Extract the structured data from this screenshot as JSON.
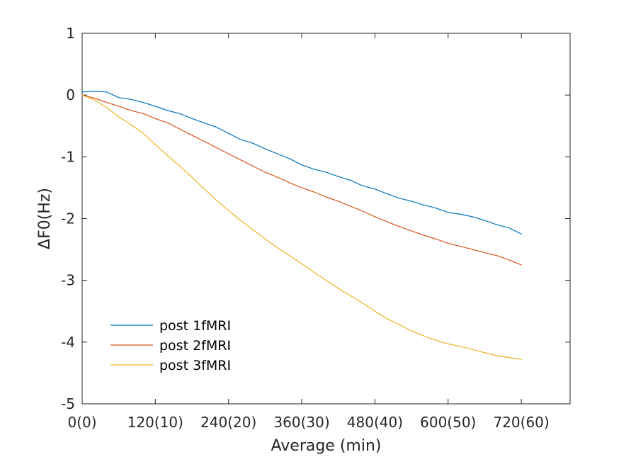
{
  "chart_data": {
    "type": "line",
    "title": "",
    "xlabel": "Average (min)",
    "ylabel": "ΔF0(Hz)",
    "xlim": [
      0,
      800
    ],
    "ylim": [
      -5,
      1
    ],
    "x_ticks": [
      {
        "value": 0,
        "label": "0(0)"
      },
      {
        "value": 120,
        "label": "120(10)"
      },
      {
        "value": 240,
        "label": "240(20)"
      },
      {
        "value": 360,
        "label": "360(30)"
      },
      {
        "value": 480,
        "label": "480(40)"
      },
      {
        "value": 600,
        "label": "600(50)"
      },
      {
        "value": 720,
        "label": "720(60)"
      }
    ],
    "y_ticks": [
      {
        "value": 1,
        "label": "1"
      },
      {
        "value": 0,
        "label": "0"
      },
      {
        "value": -1,
        "label": "-1"
      },
      {
        "value": -2,
        "label": "-2"
      },
      {
        "value": -3,
        "label": "-3"
      },
      {
        "value": -4,
        "label": "-4"
      },
      {
        "value": -5,
        "label": "-5"
      }
    ],
    "grid": false,
    "legend_position": "bottom-left",
    "series": [
      {
        "name": "post 1fMRI",
        "color": "#0072BD",
        "x": [
          0,
          20,
          40,
          60,
          80,
          100,
          120,
          140,
          160,
          180,
          200,
          220,
          240,
          260,
          280,
          300,
          320,
          340,
          360,
          380,
          400,
          420,
          440,
          460,
          480,
          500,
          520,
          540,
          560,
          580,
          600,
          620,
          640,
          660,
          680,
          700,
          720
        ],
        "values": [
          0.05,
          0.06,
          0.05,
          -0.04,
          -0.07,
          -0.12,
          -0.18,
          -0.25,
          -0.3,
          -0.38,
          -0.45,
          -0.52,
          -0.62,
          -0.72,
          -0.78,
          -0.87,
          -0.95,
          -1.03,
          -1.13,
          -1.2,
          -1.25,
          -1.32,
          -1.38,
          -1.47,
          -1.52,
          -1.6,
          -1.67,
          -1.72,
          -1.78,
          -1.83,
          -1.9,
          -1.93,
          -1.97,
          -2.03,
          -2.1,
          -2.15,
          -2.25
        ]
      },
      {
        "name": "post 2fMRI",
        "color": "#D95319",
        "x": [
          0,
          20,
          40,
          60,
          80,
          100,
          120,
          140,
          160,
          180,
          200,
          220,
          240,
          260,
          280,
          300,
          320,
          340,
          360,
          380,
          400,
          420,
          440,
          460,
          480,
          500,
          520,
          540,
          560,
          580,
          600,
          620,
          640,
          660,
          680,
          700,
          720
        ],
        "values": [
          0.0,
          -0.05,
          -0.12,
          -0.18,
          -0.25,
          -0.3,
          -0.38,
          -0.45,
          -0.55,
          -0.65,
          -0.75,
          -0.85,
          -0.95,
          -1.05,
          -1.15,
          -1.25,
          -1.33,
          -1.42,
          -1.5,
          -1.57,
          -1.65,
          -1.72,
          -1.8,
          -1.88,
          -1.97,
          -2.05,
          -2.13,
          -2.2,
          -2.27,
          -2.33,
          -2.4,
          -2.45,
          -2.5,
          -2.55,
          -2.6,
          -2.67,
          -2.75
        ]
      },
      {
        "name": "post 3fMRI",
        "color": "#EDB120",
        "x": [
          0,
          20,
          40,
          60,
          80,
          100,
          120,
          140,
          160,
          180,
          200,
          220,
          240,
          260,
          280,
          300,
          320,
          340,
          360,
          380,
          400,
          420,
          440,
          460,
          480,
          500,
          520,
          540,
          560,
          580,
          600,
          620,
          640,
          660,
          680,
          700,
          720
        ],
        "values": [
          0.0,
          -0.08,
          -0.2,
          -0.35,
          -0.48,
          -0.62,
          -0.8,
          -0.98,
          -1.15,
          -1.33,
          -1.52,
          -1.7,
          -1.87,
          -2.03,
          -2.18,
          -2.33,
          -2.47,
          -2.6,
          -2.73,
          -2.87,
          -3.0,
          -3.13,
          -3.25,
          -3.37,
          -3.5,
          -3.62,
          -3.72,
          -3.82,
          -3.9,
          -3.97,
          -4.03,
          -4.07,
          -4.12,
          -4.17,
          -4.22,
          -4.25,
          -4.28
        ]
      }
    ]
  }
}
